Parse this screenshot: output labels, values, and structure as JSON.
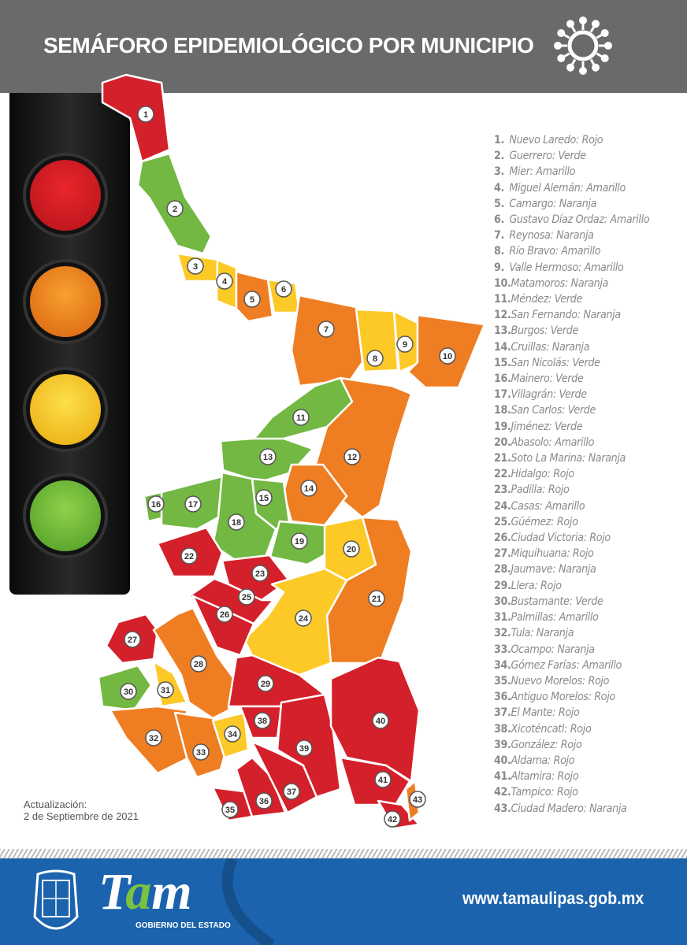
{
  "header": {
    "title": "SEMÁFORO EPIDEMIOLÓGICO POR MUNICIPIO",
    "icon": "virus-icon"
  },
  "traffic_light": {
    "lamps": [
      "rojo",
      "naranja",
      "amarillo",
      "verde"
    ]
  },
  "status_colors": {
    "Rojo": "#d4202a",
    "Naranja": "#ef7d22",
    "Amarillo": "#fcc927",
    "Verde": "#72b843"
  },
  "municipalities": [
    {
      "num": "1.",
      "name": "Nuevo Laredo",
      "status": "Rojo"
    },
    {
      "num": "2.",
      "name": "Guerrero",
      "status": "Verde"
    },
    {
      "num": "3.",
      "name": "Mier",
      "status": "Amarillo"
    },
    {
      "num": "4.",
      "name": "Miguel Alemán",
      "status": "Amarillo"
    },
    {
      "num": "5.",
      "name": "Camargo",
      "status": "Naranja"
    },
    {
      "num": "6.",
      "name": "Gustavo Díaz Ordaz",
      "status": "Amarillo"
    },
    {
      "num": "7.",
      "name": "Reynosa",
      "status": "Naranja"
    },
    {
      "num": "8.",
      "name": "Río Bravo",
      "status": "Amarillo"
    },
    {
      "num": "9.",
      "name": "Valle Hermoso",
      "status": "Amarillo"
    },
    {
      "num": "10.",
      "name": "Matamoros",
      "status": "Naranja"
    },
    {
      "num": "11.",
      "name": "Méndez",
      "status": "Verde"
    },
    {
      "num": "12.",
      "name": "San Fernando",
      "status": "Naranja"
    },
    {
      "num": "13.",
      "name": "Burgos",
      "status": "Verde"
    },
    {
      "num": "14.",
      "name": "Cruillas",
      "status": "Naranja"
    },
    {
      "num": "15.",
      "name": "San Nicolás",
      "status": "Verde"
    },
    {
      "num": "16.",
      "name": "Mainero",
      "status": "Verde"
    },
    {
      "num": "17.",
      "name": "Villagrán",
      "status": "Verde"
    },
    {
      "num": "18.",
      "name": "San Carlos",
      "status": "Verde"
    },
    {
      "num": "19.",
      "name": "Jiménez",
      "status": "Verde"
    },
    {
      "num": "20.",
      "name": "Abasolo",
      "status": "Amarillo"
    },
    {
      "num": "21.",
      "name": "Soto La Marina",
      "status": "Naranja"
    },
    {
      "num": "22.",
      "name": "Hidalgo",
      "status": "Rojo"
    },
    {
      "num": "23.",
      "name": "Padilla",
      "status": "Rojo"
    },
    {
      "num": "24.",
      "name": "Casas",
      "status": "Amarillo"
    },
    {
      "num": "25.",
      "name": "Güémez",
      "status": "Rojo"
    },
    {
      "num": "26.",
      "name": "Ciudad Victoria",
      "status": "Rojo"
    },
    {
      "num": "27.",
      "name": "Miquihuana",
      "status": "Rojo"
    },
    {
      "num": "28.",
      "name": "Jaumave",
      "status": "Naranja"
    },
    {
      "num": "29.",
      "name": "Llera",
      "status": "Rojo"
    },
    {
      "num": "30.",
      "name": "Bustamante",
      "status": "Verde"
    },
    {
      "num": "31.",
      "name": "Palmillas",
      "status": "Amarillo"
    },
    {
      "num": "32.",
      "name": "Tula",
      "status": "Naranja"
    },
    {
      "num": "33.",
      "name": "Ocampo",
      "status": "Naranja"
    },
    {
      "num": "34.",
      "name": "Gómez Farías",
      "status": "Amarillo"
    },
    {
      "num": "35.",
      "name": "Nuevo Morelos",
      "status": "Rojo"
    },
    {
      "num": "36.",
      "name": "Antiguo Morelos",
      "status": "Rojo"
    },
    {
      "num": "37.",
      "name": "El Mante",
      "status": "Rojo"
    },
    {
      "num": "38.",
      "name": "Xicoténcatl",
      "status": "Rojo"
    },
    {
      "num": "39.",
      "name": "González",
      "status": "Rojo"
    },
    {
      "num": "40.",
      "name": "Aldama",
      "status": "Rojo"
    },
    {
      "num": "41.",
      "name": "Altamira",
      "status": "Rojo"
    },
    {
      "num": "42.",
      "name": "Tampico",
      "status": "Rojo"
    },
    {
      "num": "43.",
      "name": "Ciudad Madero",
      "status": "Naranja"
    }
  ],
  "map_labels": [
    "1",
    "2",
    "3",
    "4",
    "5",
    "6",
    "7",
    "8",
    "9",
    "10",
    "11",
    "12",
    "13",
    "14",
    "15",
    "16",
    "17",
    "18",
    "19",
    "20",
    "21",
    "22",
    "23",
    "24",
    "25",
    "26",
    "27",
    "28",
    "29",
    "30",
    "31",
    "32",
    "33",
    "34",
    "35",
    "36",
    "37",
    "38",
    "39",
    "40",
    "41",
    "42",
    "43"
  ],
  "update": {
    "label": "Actualización:",
    "date": "2 de Septiembre de 2021"
  },
  "footer": {
    "logo_text": "Tam",
    "logo_sub": "GOBIERNO DEL ESTADO",
    "url": "www.tamaulipas.gob.mx"
  }
}
